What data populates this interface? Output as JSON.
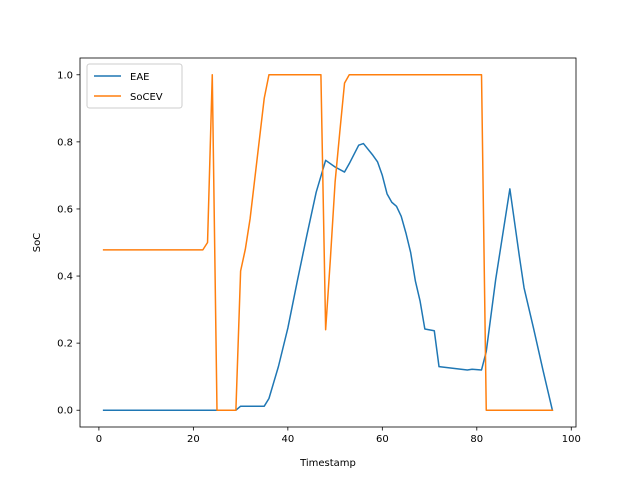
{
  "chart_data": {
    "type": "line",
    "title": "",
    "xlabel": "Timestamp",
    "ylabel": "SoC",
    "xlim": [
      -4,
      101
    ],
    "ylim": [
      -0.05,
      1.05
    ],
    "xticks": [
      0,
      20,
      40,
      60,
      80,
      100
    ],
    "yticks": [
      0.0,
      0.2,
      0.4,
      0.6,
      0.8,
      1.0
    ],
    "xtick_labels": [
      "0",
      "20",
      "40",
      "60",
      "80",
      "100"
    ],
    "ytick_labels": [
      "0.0",
      "0.2",
      "0.4",
      "0.6",
      "0.8",
      "1.0"
    ],
    "grid": false,
    "legend_position": "top-left",
    "series": [
      {
        "name": "EAE",
        "color": "#1f77b4",
        "x": [
          1,
          29,
          30,
          35,
          36,
          38,
          40,
          42,
          44,
          46,
          48,
          50,
          52,
          53,
          55,
          56,
          58,
          59,
          60,
          61,
          62,
          63,
          64,
          65,
          66,
          67,
          68,
          69,
          71,
          72,
          78,
          79,
          81,
          82,
          84,
          87,
          89,
          90,
          92,
          94,
          96
        ],
        "values": [
          0.0,
          0.0,
          0.012,
          0.012,
          0.035,
          0.13,
          0.245,
          0.385,
          0.52,
          0.65,
          0.745,
          0.725,
          0.71,
          0.735,
          0.79,
          0.795,
          0.76,
          0.74,
          0.7,
          0.645,
          0.62,
          0.608,
          0.578,
          0.528,
          0.47,
          0.385,
          0.325,
          0.242,
          0.237,
          0.13,
          0.12,
          0.122,
          0.12,
          0.175,
          0.39,
          0.66,
          0.46,
          0.365,
          0.245,
          0.12,
          0.0
        ]
      },
      {
        "name": "SoCEV",
        "color": "#ff7f0e",
        "x": [
          1,
          22,
          23,
          24,
          25,
          29,
          30,
          31,
          32,
          35,
          36,
          47,
          48,
          49,
          50,
          51,
          52,
          53,
          81,
          82,
          96
        ],
        "values": [
          0.478,
          0.478,
          0.5,
          1.0,
          0.0,
          0.0,
          0.415,
          0.48,
          0.57,
          0.93,
          1.0,
          1.0,
          0.24,
          0.45,
          0.68,
          0.83,
          0.975,
          1.0,
          1.0,
          0.0,
          0.0
        ]
      }
    ]
  }
}
